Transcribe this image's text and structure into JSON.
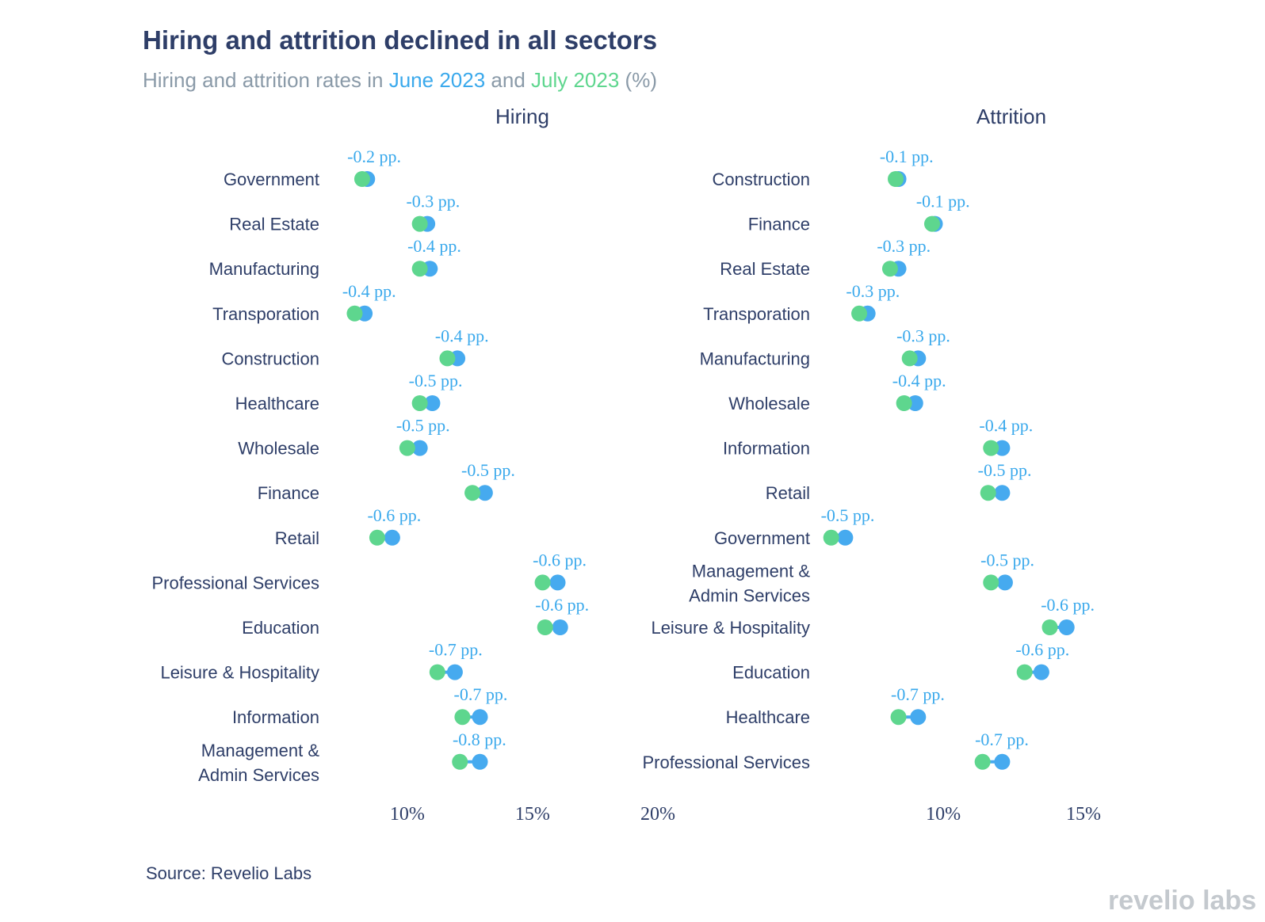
{
  "title": "Hiring and attrition declined in all sectors",
  "subtitle": {
    "prefix": "Hiring and attrition rates in ",
    "june": "June 2023",
    "mid": " and ",
    "july": "July 2023",
    "suffix": " (%)"
  },
  "source": "Source: Revelio Labs",
  "logo": "revelio labs",
  "colors": {
    "june": "#46aaef",
    "july": "#5ed68e",
    "label": "#3aa9ec",
    "text": "#2e3e68"
  },
  "chart_data": [
    {
      "type": "dumbbell",
      "title": "Hiring",
      "x_ticks": [
        10,
        15,
        20
      ],
      "x_tick_labels": [
        "10%",
        "15%",
        "20%"
      ],
      "xlim": [
        7,
        20
      ],
      "series": [
        {
          "name": "June 2023"
        },
        {
          "name": "July 2023"
        }
      ],
      "rows": [
        {
          "label": [
            "Government"
          ],
          "june": 8.4,
          "july": 8.2,
          "delta": "-0.2 pp."
        },
        {
          "label": [
            "Real Estate"
          ],
          "june": 10.8,
          "july": 10.5,
          "delta": "-0.3 pp."
        },
        {
          "label": [
            "Manufacturing"
          ],
          "june": 10.9,
          "july": 10.5,
          "delta": "-0.4 pp."
        },
        {
          "label": [
            "Transporation"
          ],
          "june": 8.3,
          "july": 7.9,
          "delta": "-0.4 pp."
        },
        {
          "label": [
            "Construction"
          ],
          "june": 12.0,
          "july": 11.6,
          "delta": "-0.4 pp."
        },
        {
          "label": [
            "Healthcare"
          ],
          "june": 11.0,
          "july": 10.5,
          "delta": "-0.5 pp."
        },
        {
          "label": [
            "Wholesale"
          ],
          "june": 10.5,
          "july": 10.0,
          "delta": "-0.5 pp."
        },
        {
          "label": [
            "Finance"
          ],
          "june": 13.1,
          "july": 12.6,
          "delta": "-0.5 pp."
        },
        {
          "label": [
            "Retail"
          ],
          "june": 9.4,
          "july": 8.8,
          "delta": "-0.6 pp."
        },
        {
          "label": [
            "Professional Services"
          ],
          "june": 16.0,
          "july": 15.4,
          "delta": "-0.6 pp."
        },
        {
          "label": [
            "Education"
          ],
          "june": 16.1,
          "july": 15.5,
          "delta": "-0.6 pp."
        },
        {
          "label": [
            "Leisure & Hospitality"
          ],
          "june": 11.9,
          "july": 11.2,
          "delta": "-0.7 pp."
        },
        {
          "label": [
            "Information"
          ],
          "june": 12.9,
          "july": 12.2,
          "delta": "-0.7 pp."
        },
        {
          "label": [
            "Management &",
            "Admin Services"
          ],
          "june": 12.9,
          "july": 12.1,
          "delta": "-0.8 pp."
        }
      ]
    },
    {
      "type": "dumbbell",
      "title": "Attrition",
      "x_ticks": [
        10,
        15
      ],
      "x_tick_labels": [
        "10%",
        "15%"
      ],
      "xlim": [
        5.5,
        16.5
      ],
      "series": [
        {
          "name": "June 2023"
        },
        {
          "name": "July 2023"
        }
      ],
      "rows": [
        {
          "label": [
            "Construction"
          ],
          "june": 8.4,
          "july": 8.3,
          "delta": "-0.1 pp."
        },
        {
          "label": [
            "Finance"
          ],
          "june": 9.7,
          "july": 9.6,
          "delta": "-0.1 pp."
        },
        {
          "label": [
            "Real Estate"
          ],
          "june": 8.4,
          "july": 8.1,
          "delta": "-0.3 pp."
        },
        {
          "label": [
            "Transporation"
          ],
          "june": 7.3,
          "july": 7.0,
          "delta": "-0.3 pp."
        },
        {
          "label": [
            "Manufacturing"
          ],
          "june": 9.1,
          "july": 8.8,
          "delta": "-0.3 pp."
        },
        {
          "label": [
            "Wholesale"
          ],
          "june": 9.0,
          "july": 8.6,
          "delta": "-0.4 pp."
        },
        {
          "label": [
            "Information"
          ],
          "june": 12.1,
          "july": 11.7,
          "delta": "-0.4 pp."
        },
        {
          "label": [
            "Retail"
          ],
          "june": 12.1,
          "july": 11.6,
          "delta": "-0.5 pp."
        },
        {
          "label": [
            "Government"
          ],
          "june": 6.5,
          "july": 6.0,
          "delta": "-0.5 pp."
        },
        {
          "label": [
            "Management &",
            "Admin Services"
          ],
          "june": 12.2,
          "july": 11.7,
          "delta": "-0.5 pp."
        },
        {
          "label": [
            "Leisure & Hospitality"
          ],
          "june": 14.4,
          "july": 13.8,
          "delta": "-0.6 pp."
        },
        {
          "label": [
            "Education"
          ],
          "june": 13.5,
          "july": 12.9,
          "delta": "-0.6 pp."
        },
        {
          "label": [
            "Healthcare"
          ],
          "june": 9.1,
          "july": 8.4,
          "delta": "-0.7 pp."
        },
        {
          "label": [
            "Professional Services"
          ],
          "june": 12.1,
          "july": 11.4,
          "delta": "-0.7 pp."
        }
      ]
    }
  ]
}
